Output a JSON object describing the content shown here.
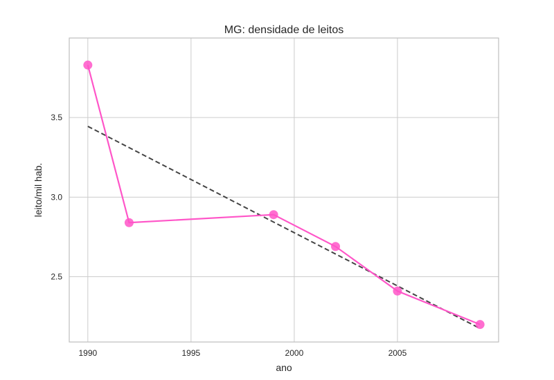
{
  "chart_data": {
    "type": "line",
    "title": "MG: densidade de leitos",
    "xlabel": "ano",
    "ylabel": "leito/mil hab.",
    "xlim": [
      1989.1,
      2009.9
    ],
    "ylim": [
      2.09,
      4.0
    ],
    "xticks": [
      1990,
      1995,
      2000,
      2005
    ],
    "xtick_labels": [
      "1990",
      "1995",
      "2000",
      "2005"
    ],
    "yticks": [
      2.5,
      3.0,
      3.5
    ],
    "ytick_labels": [
      "2.5",
      "3.0",
      "3.5"
    ],
    "grid": true,
    "series": [
      {
        "x": [
          1990,
          1992,
          1999,
          2002,
          2005,
          2009
        ],
        "y": [
          3.83,
          2.84,
          2.89,
          2.69,
          2.41,
          2.2
        ],
        "color": "#ff55c8",
        "marker": "circle"
      }
    ],
    "trendline": {
      "x": [
        1990,
        2009
      ],
      "y": [
        3.445,
        2.175
      ],
      "color": "#444444",
      "style": "dashed"
    }
  }
}
